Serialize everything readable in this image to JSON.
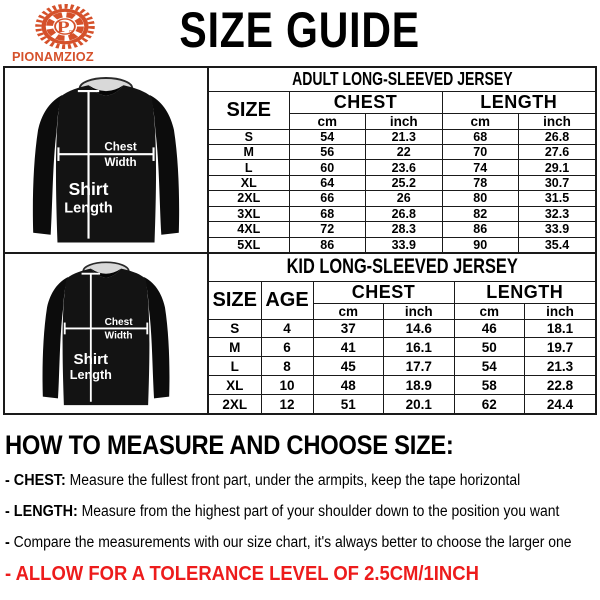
{
  "brand": {
    "name": "PIONAMZIOZ",
    "monogram_main": "P",
    "monogram_sub": "Z"
  },
  "title": "SIZE GUIDE",
  "adult_table": {
    "title": "ADULT LONG-SLEEVED JERSEY",
    "headers": {
      "size": "SIZE",
      "chest": "CHEST",
      "length": "LENGTH",
      "cm": "cm",
      "inch": "inch"
    },
    "rows": [
      {
        "size": "S",
        "chest_cm": "54",
        "chest_inch": "21.3",
        "length_cm": "68",
        "length_inch": "26.8"
      },
      {
        "size": "M",
        "chest_cm": "56",
        "chest_inch": "22",
        "length_cm": "70",
        "length_inch": "27.6"
      },
      {
        "size": "L",
        "chest_cm": "60",
        "chest_inch": "23.6",
        "length_cm": "74",
        "length_inch": "29.1"
      },
      {
        "size": "XL",
        "chest_cm": "64",
        "chest_inch": "25.2",
        "length_cm": "78",
        "length_inch": "30.7"
      },
      {
        "size": "2XL",
        "chest_cm": "66",
        "chest_inch": "26",
        "length_cm": "80",
        "length_inch": "31.5"
      },
      {
        "size": "3XL",
        "chest_cm": "68",
        "chest_inch": "26.8",
        "length_cm": "82",
        "length_inch": "32.3"
      },
      {
        "size": "4XL",
        "chest_cm": "72",
        "chest_inch": "28.3",
        "length_cm": "86",
        "length_inch": "33.9"
      },
      {
        "size": "5XL",
        "chest_cm": "86",
        "chest_inch": "33.9",
        "length_cm": "90",
        "length_inch": "35.4"
      }
    ]
  },
  "kid_table": {
    "title": "KID LONG-SLEEVED JERSEY",
    "headers": {
      "size": "SIZE",
      "age": "AGE",
      "chest": "CHEST",
      "length": "LENGTH",
      "cm": "cm",
      "inch": "inch"
    },
    "rows": [
      {
        "size": "S",
        "age": "4",
        "chest_cm": "37",
        "chest_inch": "14.6",
        "length_cm": "46",
        "length_inch": "18.1"
      },
      {
        "size": "M",
        "age": "6",
        "chest_cm": "41",
        "chest_inch": "16.1",
        "length_cm": "50",
        "length_inch": "19.7"
      },
      {
        "size": "L",
        "age": "8",
        "chest_cm": "45",
        "chest_inch": "17.7",
        "length_cm": "54",
        "length_inch": "21.3"
      },
      {
        "size": "XL",
        "age": "10",
        "chest_cm": "48",
        "chest_inch": "18.9",
        "length_cm": "58",
        "length_inch": "22.8"
      },
      {
        "size": "2XL",
        "age": "12",
        "chest_cm": "51",
        "chest_inch": "20.1",
        "length_cm": "62",
        "length_inch": "24.4"
      }
    ]
  },
  "shirt_diagram": {
    "chest_line1": "Chest",
    "chest_line2": "Width",
    "length_line1": "Shirt",
    "length_line2": "Length"
  },
  "instructions": {
    "heading": "HOW TO MEASURE AND CHOOSE SIZE:",
    "items": [
      {
        "bullet": "-",
        "label": "CHEST:",
        "text": "Measure the fullest front part, under the armpits, keep the tape horizontal",
        "alert": false
      },
      {
        "bullet": "-",
        "label": "LENGTH:",
        "text": "Measure from the highest part of your shoulder down to the position you want",
        "alert": false
      },
      {
        "bullet": "-",
        "label": "",
        "text": "Compare the measurements with our size chart, it's always better to choose the larger one",
        "alert": false
      },
      {
        "bullet": "-",
        "label": "",
        "text": "ALLOW FOR A TOLERANCE LEVEL OF 2.5CM/1INCH",
        "alert": true
      }
    ]
  },
  "colors": {
    "brand_orange": "#d5512b",
    "alert_red": "#ed1c1c",
    "table_border": "#1a1a1a",
    "shirt_black": "#121212"
  }
}
